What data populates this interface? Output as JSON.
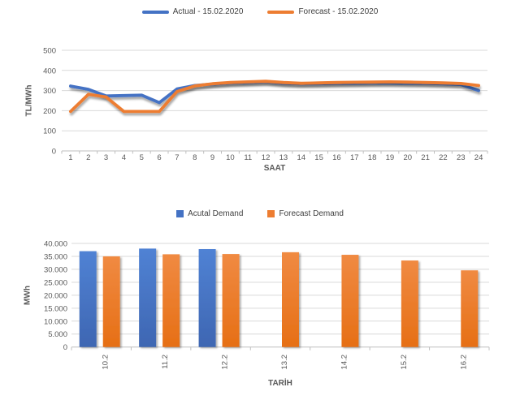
{
  "colors": {
    "actual_blue": "#4472C4",
    "forecast_orange": "#ED7D31",
    "gridline": "#D9D9D9",
    "axis_line": "#BFBFBF",
    "tick_text": "#595959",
    "title_text": "#595959",
    "legend_text": "#404040"
  },
  "chart_data": [
    {
      "type": "line",
      "title": "",
      "xlabel": "SAAT",
      "ylabel": "TL/MWh",
      "x": [
        1,
        2,
        3,
        4,
        5,
        6,
        7,
        8,
        9,
        10,
        11,
        12,
        13,
        14,
        15,
        16,
        17,
        18,
        19,
        20,
        21,
        22,
        23,
        24
      ],
      "ylim": [
        0,
        500
      ],
      "yticks": [
        0,
        100,
        200,
        300,
        400,
        500
      ],
      "ytick_labels": [
        "0",
        "100",
        "200",
        "300",
        "400",
        "500"
      ],
      "grid": true,
      "legend_position": "top-center",
      "series": [
        {
          "name": "Actual - 15.02.2020",
          "color": "#4472C4",
          "values": [
            322,
            306,
            273,
            275,
            277,
            240,
            308,
            325,
            332,
            337,
            340,
            343,
            336,
            333,
            334,
            335,
            336,
            337,
            337,
            336,
            335,
            333,
            330,
            300
          ]
        },
        {
          "name": "Forecast - 15.02.2020",
          "color": "#ED7D31",
          "values": [
            196,
            281,
            268,
            196,
            196,
            196,
            295,
            323,
            334,
            340,
            343,
            346,
            340,
            336,
            338,
            340,
            341,
            342,
            343,
            342,
            340,
            338,
            335,
            325
          ]
        }
      ]
    },
    {
      "type": "bar",
      "title": "",
      "xlabel": "TARİH",
      "ylabel": "MWh",
      "categories": [
        "10.2",
        "11.2",
        "12.2",
        "13.2",
        "14.2",
        "15.2",
        "16.2"
      ],
      "ylim": [
        0,
        40000
      ],
      "yticks": [
        0,
        5000,
        10000,
        15000,
        20000,
        25000,
        30000,
        35000,
        40000
      ],
      "ytick_labels": [
        "0",
        "5.000",
        "10.000",
        "15.000",
        "20.000",
        "25.000",
        "30.000",
        "35.000",
        "40.000"
      ],
      "grid": true,
      "legend_position": "top-center",
      "series": [
        {
          "name": "Acutal Demand",
          "color": "#4472C4",
          "values": [
            37000,
            38000,
            37800,
            null,
            null,
            null,
            null
          ]
        },
        {
          "name": "Forecast Demand",
          "color": "#ED7D31",
          "values": [
            35000,
            35800,
            35900,
            36600,
            35600,
            33400,
            29600
          ]
        }
      ]
    }
  ]
}
